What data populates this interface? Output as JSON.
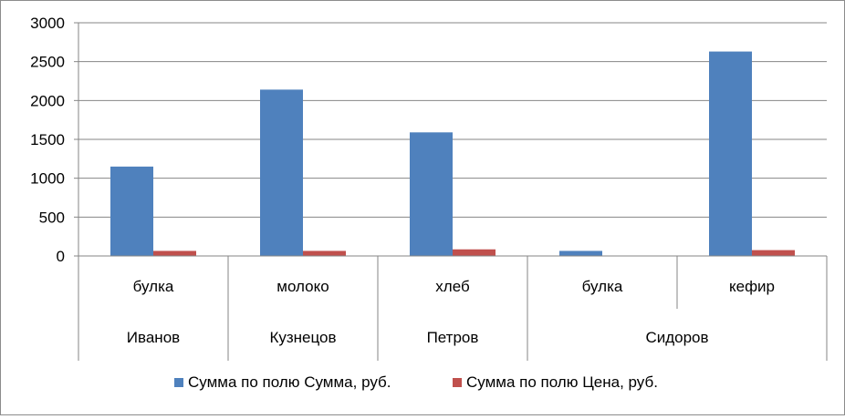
{
  "chart_data": {
    "type": "bar",
    "title": "",
    "xlabel": "",
    "ylabel": "",
    "ylim": [
      0,
      3000
    ],
    "yticks": [
      0,
      500,
      1000,
      1500,
      2000,
      2500,
      3000
    ],
    "grid": true,
    "legend_position": "bottom",
    "categories": [
      "булка",
      "молоко",
      "хлеб",
      "булка",
      "кефир"
    ],
    "groups": [
      {
        "label": "Иванов",
        "categories": [
          "булка"
        ]
      },
      {
        "label": "Кузнецов",
        "categories": [
          "молоко"
        ]
      },
      {
        "label": "Петров",
        "categories": [
          "хлеб"
        ]
      },
      {
        "label": "Сидоров",
        "categories": [
          "булка",
          "кефир"
        ]
      }
    ],
    "series": [
      {
        "name": "Сумма по полю Сумма, руб.",
        "color": "#4F81BD",
        "values": [
          1150,
          2140,
          1590,
          65,
          2630
        ]
      },
      {
        "name": "Сумма по полю Цена, руб.",
        "color": "#C0504D",
        "values": [
          65,
          65,
          85,
          0,
          75
        ]
      }
    ]
  }
}
